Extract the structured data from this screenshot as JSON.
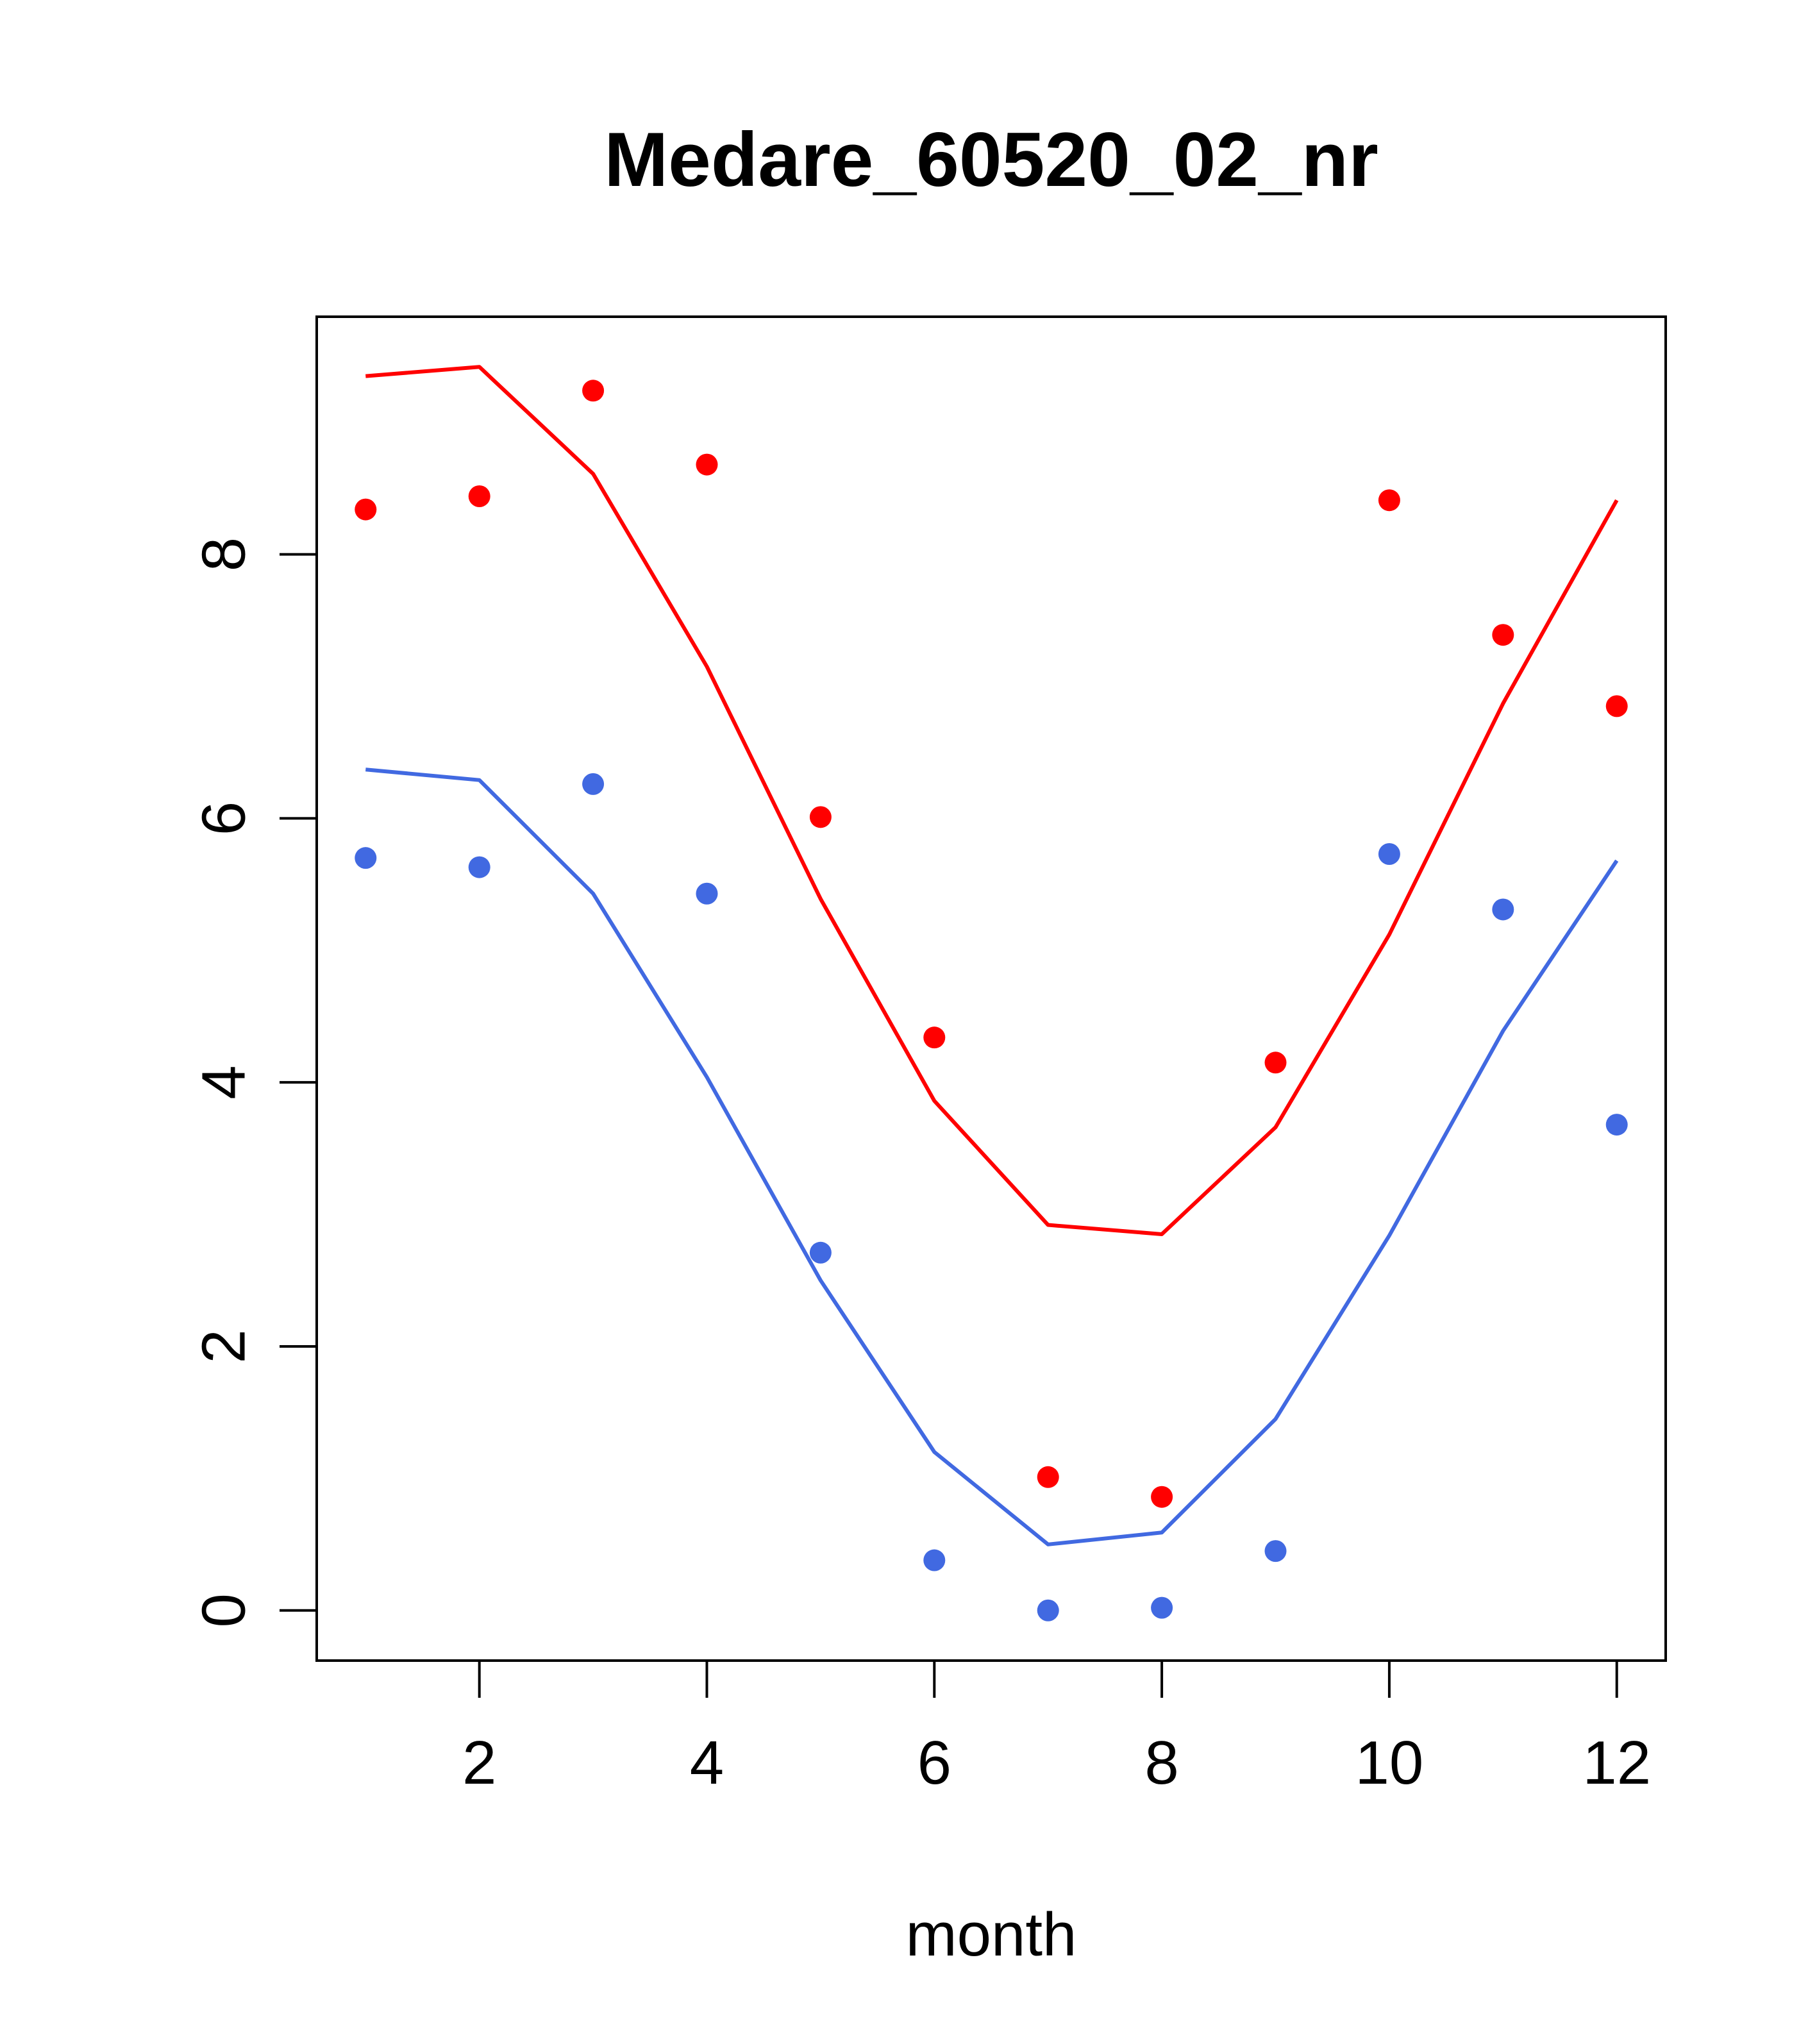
{
  "chart_data": {
    "type": "line",
    "title": "Medare_60520_02_nr",
    "xlabel": "month",
    "ylabel": "",
    "xlim": [
      0.57,
      12.43
    ],
    "ylim": [
      -0.38,
      9.8
    ],
    "x_ticks": [
      2,
      4,
      6,
      8,
      10,
      12
    ],
    "y_ticks": [
      0,
      2,
      4,
      6,
      8
    ],
    "x_tick_labels": [
      "2",
      "4",
      "6",
      "8",
      "10",
      "12"
    ],
    "y_tick_labels": [
      "0",
      "2",
      "4",
      "6",
      "8"
    ],
    "grid": false,
    "legend": "none",
    "x": [
      1,
      2,
      3,
      4,
      5,
      6,
      7,
      8,
      9,
      10,
      11,
      12
    ],
    "series": [
      {
        "color": "#ff0000",
        "mark": "line",
        "values": [
          9.35,
          9.42,
          8.61,
          7.15,
          5.39,
          3.86,
          2.92,
          2.85,
          3.66,
          5.12,
          6.87,
          8.41
        ]
      },
      {
        "color": "#ff0000",
        "mark": "points",
        "values": [
          8.34,
          8.44,
          9.24,
          8.68,
          6.01,
          4.34,
          1.01,
          0.86,
          4.15,
          8.41,
          7.39,
          6.85
        ]
      },
      {
        "color": "#4169e1",
        "mark": "line",
        "values": [
          6.37,
          6.29,
          5.43,
          4.04,
          2.5,
          1.2,
          0.5,
          0.59,
          1.45,
          2.84,
          4.39,
          5.68
        ]
      },
      {
        "color": "#4169e1",
        "mark": "points",
        "values": [
          5.7,
          5.63,
          6.26,
          5.43,
          2.71,
          0.38,
          0.0,
          0.02,
          0.45,
          5.73,
          5.31,
          3.68
        ]
      }
    ]
  }
}
